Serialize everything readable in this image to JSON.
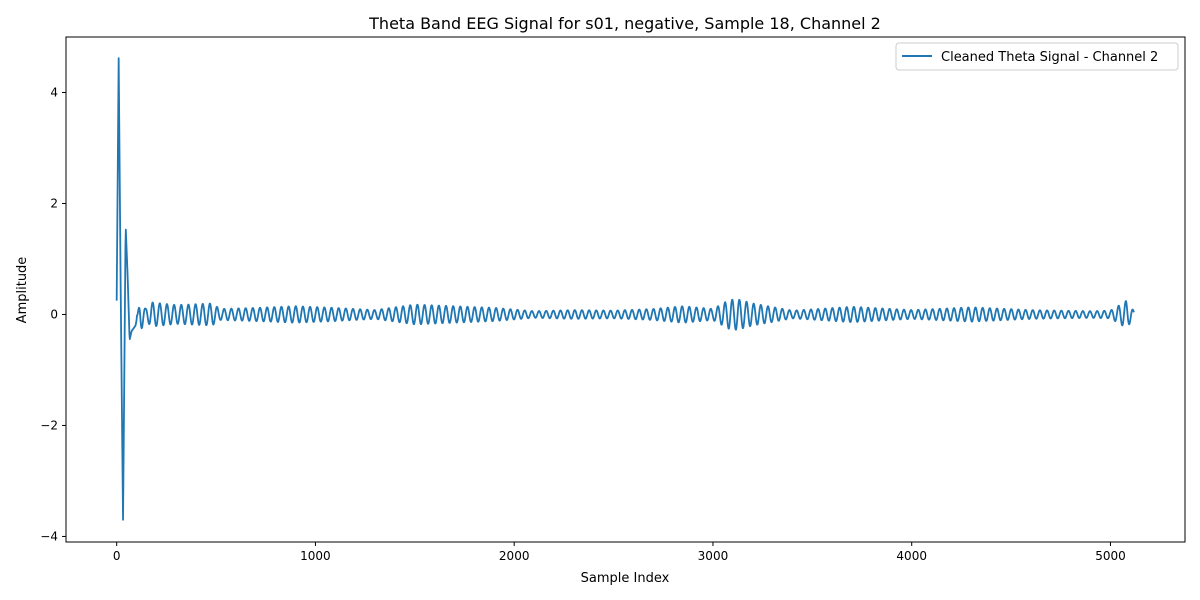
{
  "chart_data": {
    "type": "line",
    "title": "Theta Band EEG Signal for s01, negative, Sample 18, Channel 2",
    "xlabel": "Sample Index",
    "ylabel": "Amplitude",
    "xlim": [
      -255,
      5375
    ],
    "ylim": [
      -4.1,
      5.0
    ],
    "xticks": [
      0,
      1000,
      2000,
      3000,
      4000,
      5000
    ],
    "xtick_labels": [
      "0",
      "1000",
      "2000",
      "3000",
      "4000",
      "5000"
    ],
    "yticks": [
      -4,
      -2,
      0,
      2,
      4
    ],
    "ytick_labels": [
      "−4",
      "−2",
      "0",
      "2",
      "4"
    ],
    "grid": false,
    "legend_placement": "top-right",
    "series": [
      {
        "name": "Cleaned Theta Signal - Channel 2",
        "color": "#1f77b4",
        "sample_count": 5120,
        "cycle_period_samples": 36,
        "x": [
          0,
          10,
          20,
          32,
          45,
          55,
          65,
          75,
          95,
          120,
          145,
          175,
          300,
          480,
          520,
          700,
          900,
          1100,
          1300,
          1500,
          1700,
          1900,
          2100,
          2300,
          2500,
          2700,
          2850,
          3000,
          3080,
          3120,
          3200,
          3400,
          3700,
          4000,
          4300,
          4600,
          4900,
          5000,
          5060,
          5080,
          5100,
          5120
        ],
        "envelope": [
          0.25,
          4.62,
          0.5,
          -3.7,
          1.62,
          0.7,
          -0.46,
          -0.3,
          -0.2,
          0.3,
          0.1,
          0.22,
          0.17,
          0.2,
          0.1,
          0.12,
          0.15,
          0.12,
          0.08,
          0.18,
          0.15,
          0.12,
          0.06,
          0.08,
          0.07,
          0.1,
          0.15,
          0.1,
          0.26,
          0.28,
          0.2,
          0.07,
          0.14,
          0.08,
          0.13,
          0.08,
          0.06,
          0.07,
          0.2,
          0.25,
          0.15,
          0.05
        ]
      }
    ]
  }
}
